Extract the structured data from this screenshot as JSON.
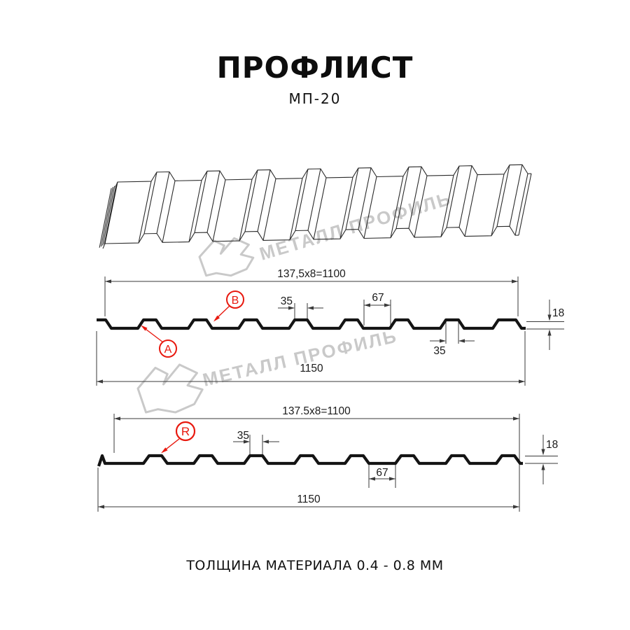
{
  "page": {
    "title": "ПРОФЛИСТ",
    "subtitle": "МП-20",
    "footer": "ТОЛЩИНА МАТЕРИАЛА 0.4 - 0.8 ММ"
  },
  "watermark": {
    "text": "МЕТАЛЛ ПРОФИЛЬ"
  },
  "colors": {
    "red": "#e8190f",
    "line": "#141414",
    "thin_line": "#3a3a3a",
    "watermark": "#c9c9c9"
  },
  "section_top": {
    "module_dim": "137,5x8=1100",
    "overall_dim": "1150",
    "rib_top_width_dim": "35",
    "rib_bottom_width_dim": "35",
    "valley_width_dim": "67",
    "height_dim": "18",
    "point_labels": {
      "a": "A",
      "b": "B"
    }
  },
  "section_bottom": {
    "module_dim": "137.5x8=1100",
    "overall_dim": "1150",
    "rib_width_dim": "35",
    "valley_width_dim": "67",
    "height_dim": "18",
    "point_labels": {
      "r": "R"
    }
  }
}
